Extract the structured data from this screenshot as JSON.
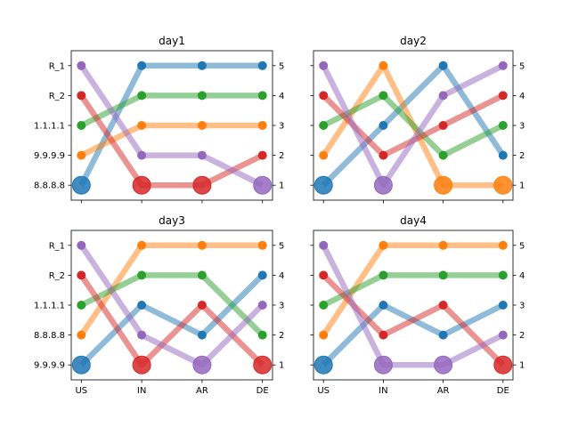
{
  "chart_data": [
    {
      "type": "line",
      "title": "day1",
      "categories": [
        "US",
        "IN",
        "AR",
        "DE"
      ],
      "left_labels": [
        "8.8.8.8",
        "9.9.9.9",
        "1.1.1.1",
        "R_2",
        "R_1"
      ],
      "right_labels": [
        "1",
        "2",
        "3",
        "4",
        "5"
      ],
      "ylim": [
        5.5,
        0.5
      ],
      "show_x_ticks": false,
      "series": [
        {
          "color": "#1f77b4",
          "ranks": [
            1,
            5,
            5,
            5
          ],
          "big": [
            true,
            false,
            false,
            false
          ]
        },
        {
          "color": "#ff7f0e",
          "ranks": [
            2,
            3,
            3,
            3
          ],
          "big": [
            false,
            false,
            false,
            false
          ]
        },
        {
          "color": "#2ca02c",
          "ranks": [
            3,
            4,
            4,
            4
          ],
          "big": [
            false,
            false,
            false,
            false
          ]
        },
        {
          "color": "#d62728",
          "ranks": [
            4,
            1,
            1,
            2
          ],
          "big": [
            false,
            true,
            true,
            false
          ]
        },
        {
          "color": "#9467bd",
          "ranks": [
            5,
            2,
            2,
            1
          ],
          "big": [
            false,
            false,
            false,
            true
          ]
        }
      ]
    },
    {
      "type": "line",
      "title": "day2",
      "categories": [
        "US",
        "IN",
        "AR",
        "DE"
      ],
      "left_labels": [
        "",
        "",
        "",
        "",
        ""
      ],
      "right_labels": [
        "1",
        "2",
        "3",
        "4",
        "5"
      ],
      "ylim": [
        5.5,
        0.5
      ],
      "show_x_ticks": false,
      "series": [
        {
          "color": "#1f77b4",
          "ranks": [
            1,
            3,
            5,
            2
          ],
          "big": [
            true,
            false,
            false,
            false
          ]
        },
        {
          "color": "#ff7f0e",
          "ranks": [
            2,
            5,
            1,
            1
          ],
          "big": [
            false,
            false,
            true,
            true
          ]
        },
        {
          "color": "#2ca02c",
          "ranks": [
            3,
            4,
            2,
            3
          ],
          "big": [
            false,
            false,
            false,
            false
          ]
        },
        {
          "color": "#d62728",
          "ranks": [
            4,
            2,
            3,
            4
          ],
          "big": [
            false,
            false,
            false,
            false
          ]
        },
        {
          "color": "#9467bd",
          "ranks": [
            5,
            1,
            4,
            5
          ],
          "big": [
            false,
            true,
            false,
            false
          ]
        }
      ]
    },
    {
      "type": "line",
      "title": "day3",
      "categories": [
        "US",
        "IN",
        "AR",
        "DE"
      ],
      "left_labels": [
        "9.9.9.9",
        "8.8.8.8",
        "1.1.1.1",
        "R_2",
        "R_1"
      ],
      "right_labels": [
        "1",
        "2",
        "3",
        "4",
        "5"
      ],
      "ylim": [
        5.5,
        0.5
      ],
      "show_x_ticks": true,
      "series": [
        {
          "color": "#1f77b4",
          "ranks": [
            1,
            3,
            2,
            4
          ],
          "big": [
            true,
            false,
            false,
            false
          ]
        },
        {
          "color": "#ff7f0e",
          "ranks": [
            2,
            5,
            5,
            5
          ],
          "big": [
            false,
            false,
            false,
            false
          ]
        },
        {
          "color": "#2ca02c",
          "ranks": [
            3,
            4,
            4,
            2
          ],
          "big": [
            false,
            false,
            false,
            false
          ]
        },
        {
          "color": "#d62728",
          "ranks": [
            4,
            1,
            3,
            1
          ],
          "big": [
            false,
            true,
            false,
            true
          ]
        },
        {
          "color": "#9467bd",
          "ranks": [
            5,
            2,
            1,
            3
          ],
          "big": [
            false,
            false,
            true,
            false
          ]
        }
      ]
    },
    {
      "type": "line",
      "title": "day4",
      "categories": [
        "US",
        "IN",
        "AR",
        "DE"
      ],
      "left_labels": [
        "",
        "",
        "",
        "",
        ""
      ],
      "right_labels": [
        "1",
        "2",
        "3",
        "4",
        "5"
      ],
      "ylim": [
        5.5,
        0.5
      ],
      "show_x_ticks": true,
      "series": [
        {
          "color": "#1f77b4",
          "ranks": [
            1,
            3,
            2,
            3
          ],
          "big": [
            true,
            false,
            false,
            false
          ]
        },
        {
          "color": "#ff7f0e",
          "ranks": [
            2,
            5,
            5,
            5
          ],
          "big": [
            false,
            false,
            false,
            false
          ]
        },
        {
          "color": "#2ca02c",
          "ranks": [
            3,
            4,
            4,
            4
          ],
          "big": [
            false,
            false,
            false,
            false
          ]
        },
        {
          "color": "#d62728",
          "ranks": [
            4,
            2,
            3,
            1
          ],
          "big": [
            false,
            false,
            false,
            true
          ]
        },
        {
          "color": "#9467bd",
          "ranks": [
            5,
            1,
            1,
            2
          ],
          "big": [
            false,
            true,
            true,
            false
          ]
        }
      ]
    }
  ]
}
